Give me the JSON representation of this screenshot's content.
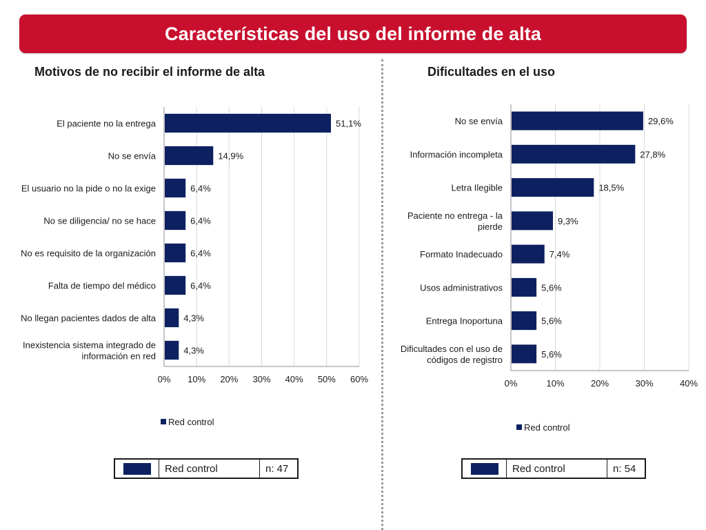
{
  "header": {
    "title": "Características del uso del informe de alta"
  },
  "colors": {
    "banner": "#c8102e",
    "bar": "#0d2161",
    "grid": "#d9d9d9"
  },
  "left_panel": {
    "title": "Motivos de no recibir el informe de alta",
    "legend": "Red control",
    "table": {
      "label": "Red control",
      "n": "n: 47"
    }
  },
  "right_panel": {
    "title": "Dificultades en el uso",
    "legend": "Red control",
    "table": {
      "label": "Red control",
      "n": "n: 54"
    }
  },
  "chart_data": [
    {
      "type": "bar",
      "orientation": "horizontal",
      "title": "Motivos de no recibir el informe de alta",
      "categories": [
        [
          "El paciente no la entrega"
        ],
        [
          "No se envía"
        ],
        [
          "El usuario no la pide o no la exige"
        ],
        [
          "No se diligencia/ no se hace"
        ],
        [
          "No es requisito de la organización"
        ],
        [
          "Falta de tiempo del médico"
        ],
        [
          "No llegan pacientes dados de alta"
        ],
        [
          "Inexistencia sistema integrado de",
          "información en red"
        ]
      ],
      "series": [
        {
          "name": "Red control",
          "values": [
            51.1,
            14.9,
            6.4,
            6.4,
            6.4,
            6.4,
            4.3,
            4.3
          ]
        }
      ],
      "value_labels": [
        "51,1%",
        "14,9%",
        "6,4%",
        "6,4%",
        "6,4%",
        "6,4%",
        "4,3%",
        "4,3%"
      ],
      "xlim": [
        0,
        60
      ],
      "ticks": [
        "0%",
        "10%",
        "20%",
        "30%",
        "40%",
        "50%",
        "60%"
      ],
      "grid": true,
      "legend_position": "bottom"
    },
    {
      "type": "bar",
      "orientation": "horizontal",
      "title": "Dificultades en el uso",
      "categories": [
        [
          "No se envía"
        ],
        [
          "Información incompleta"
        ],
        [
          "Letra Ilegible"
        ],
        [
          "Paciente no entrega - la",
          "pierde"
        ],
        [
          "Formato Inadecuado"
        ],
        [
          "Usos administrativos"
        ],
        [
          "Entrega Inoportuna"
        ],
        [
          "Dificultades con el uso de",
          "códigos de registro"
        ]
      ],
      "series": [
        {
          "name": "Red control",
          "values": [
            29.6,
            27.8,
            18.5,
            9.3,
            7.4,
            5.6,
            5.6,
            5.6
          ]
        }
      ],
      "value_labels": [
        "29,6%",
        "27,8%",
        "18,5%",
        "9,3%",
        "7,4%",
        "5,6%",
        "5,6%",
        "5,6%"
      ],
      "xlim": [
        0,
        40
      ],
      "ticks": [
        "0%",
        "10%",
        "20%",
        "30%",
        "40%"
      ],
      "grid": true,
      "legend_position": "bottom"
    }
  ]
}
